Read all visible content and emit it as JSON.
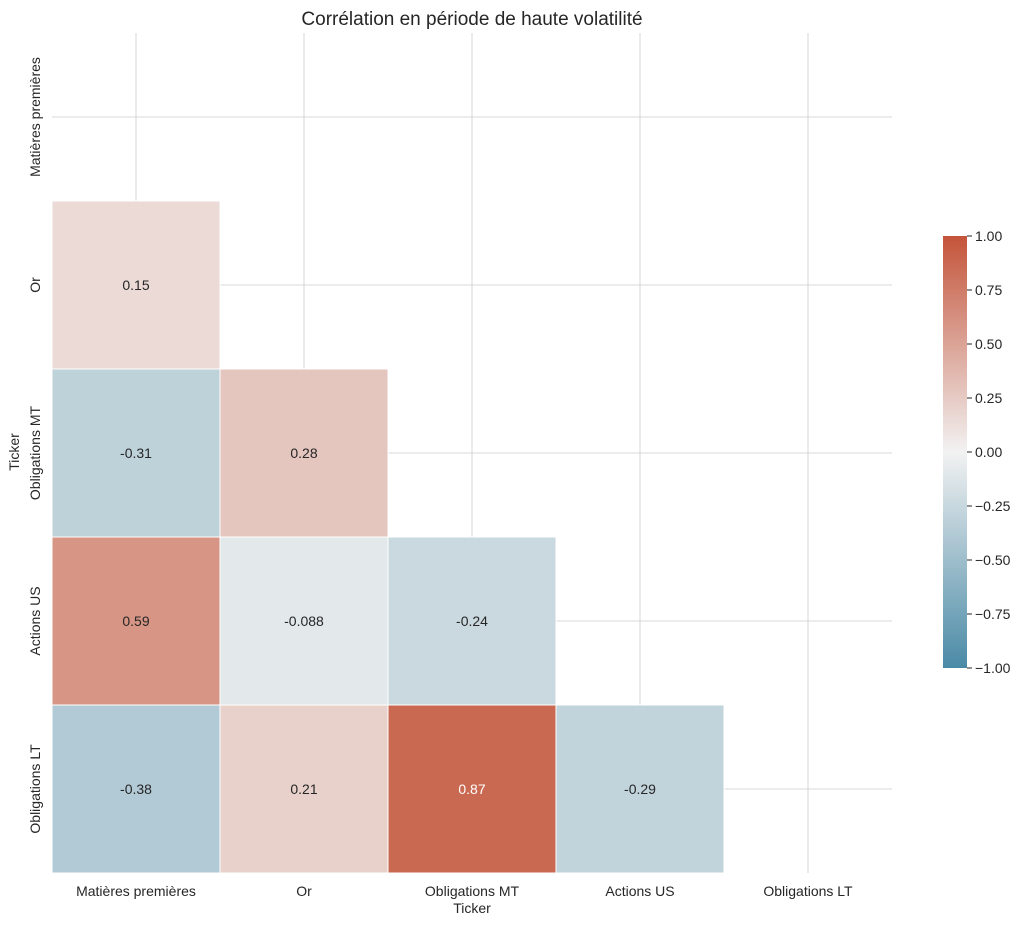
{
  "chart_data": {
    "type": "heatmap",
    "title": "Corrélation en période de haute volatilité",
    "xlabel": "Ticker",
    "ylabel": "Ticker",
    "categories": [
      "Matières premières",
      "Or",
      "Obligations MT",
      "Actions US",
      "Obligations LT"
    ],
    "mask": "upper-triangle-including-diagonal",
    "values": [
      [
        null,
        null,
        null,
        null,
        null
      ],
      [
        0.15,
        null,
        null,
        null,
        null
      ],
      [
        -0.31,
        0.28,
        null,
        null,
        null
      ],
      [
        0.59,
        -0.088,
        -0.24,
        null,
        null
      ],
      [
        -0.38,
        0.21,
        0.87,
        -0.29,
        null
      ]
    ],
    "cell_labels": [
      [
        "",
        "",
        "",
        "",
        ""
      ],
      [
        "0.15",
        "",
        "",
        "",
        ""
      ],
      [
        "-0.31",
        "0.28",
        "",
        "",
        ""
      ],
      [
        "0.59",
        "-0.088",
        "-0.24",
        "",
        ""
      ],
      [
        "-0.38",
        "0.21",
        "0.87",
        "-0.29",
        ""
      ]
    ],
    "colorbar": {
      "range": [
        -1.0,
        1.0
      ],
      "ticks": [
        1.0,
        0.75,
        0.5,
        0.25,
        0.0,
        -0.25,
        -0.5,
        -0.75,
        -1.0
      ],
      "tick_labels": [
        "1.00",
        "0.75",
        "0.50",
        "0.25",
        "0.00",
        "−0.25",
        "−0.50",
        "−0.75",
        "−1.00"
      ],
      "low_color": "#4a8aa6",
      "mid_color": "#f2f2f2",
      "high_color": "#c4543a"
    },
    "grid": true
  }
}
